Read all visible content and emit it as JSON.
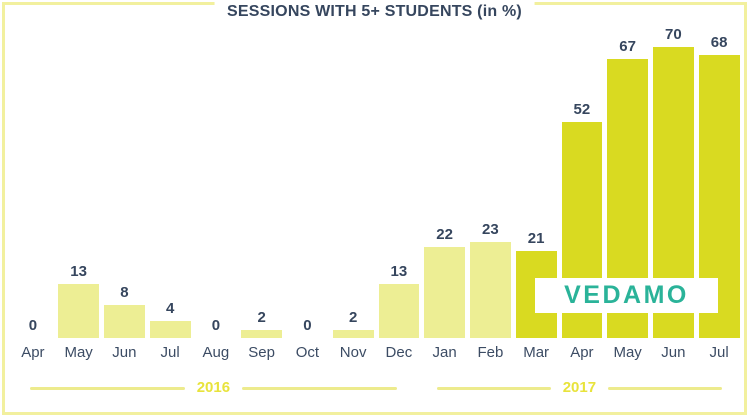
{
  "watermark": {
    "label": "VEDAMO"
  },
  "colors": {
    "background": "#ffffff",
    "border": "#f2f09e",
    "bar_light": "#edee94",
    "bar_dark": "#d9da21",
    "label_text": "#36465e",
    "month_text": "#3c4c64",
    "year_text": "#e8e33c",
    "year_line": "#edeb8d",
    "watermark_teal": "#2ab399"
  },
  "chart_data": {
    "type": "bar",
    "title": "SESSIONS WITH 5+ STUDENTS (in %)",
    "categories": [
      "Apr",
      "May",
      "Jun",
      "Jul",
      "Aug",
      "Sep",
      "Oct",
      "Nov",
      "Dec",
      "Jan",
      "Feb",
      "Mar",
      "Apr",
      "May",
      "Jun",
      "Jul"
    ],
    "values": [
      0,
      13,
      8,
      4,
      0,
      2,
      0,
      2,
      13,
      22,
      23,
      21,
      52,
      67,
      70,
      68
    ],
    "bar_shades": [
      "light",
      "light",
      "light",
      "light",
      "light",
      "light",
      "light",
      "light",
      "light",
      "light",
      "light",
      "dark",
      "dark",
      "dark",
      "dark",
      "dark"
    ],
    "year_groups": [
      {
        "label": "2016",
        "columns": 9
      },
      {
        "label": "2017",
        "columns": 7
      }
    ],
    "xlabel": "",
    "ylabel": "",
    "ylim": [
      0,
      70
    ],
    "grid": false,
    "legend": false,
    "value_labels": true
  }
}
